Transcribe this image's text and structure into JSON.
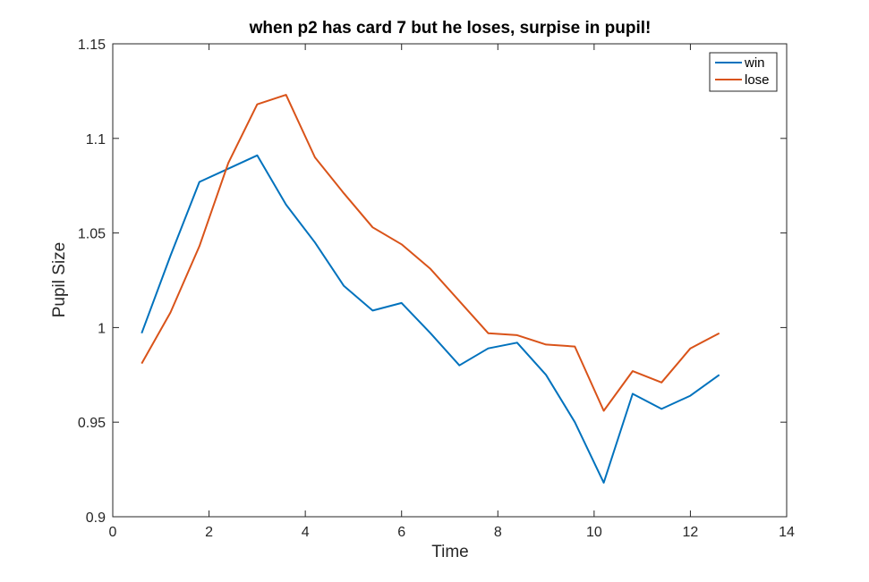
{
  "chart_data": {
    "type": "line",
    "title": "when p2 has card 7 but he loses, surpise in pupil!",
    "xlabel": "Time",
    "ylabel": "Pupil Size",
    "xlim": [
      0,
      14
    ],
    "ylim": [
      0.9,
      1.15
    ],
    "xticks": [
      0,
      2,
      4,
      6,
      8,
      10,
      12,
      14
    ],
    "xtick_labels": [
      "0",
      "2",
      "4",
      "6",
      "8",
      "10",
      "12",
      "14"
    ],
    "yticks": [
      0.9,
      0.95,
      1.0,
      1.05,
      1.1,
      1.15
    ],
    "ytick_labels": [
      "0.9",
      "0.95",
      "1",
      "1.05",
      "1.1",
      "1.15"
    ],
    "grid": false,
    "legend_position": "top-right",
    "x": [
      0.6,
      1.2,
      1.8,
      2.4,
      3.0,
      3.6,
      4.2,
      4.8,
      5.4,
      6.0,
      6.6,
      7.2,
      7.8,
      8.4,
      9.0,
      9.6,
      10.2,
      10.8,
      11.4,
      12.0,
      12.6
    ],
    "series": [
      {
        "name": "win",
        "color": "#0072BD",
        "values": [
          0.997,
          1.038,
          1.077,
          1.084,
          1.091,
          1.065,
          1.045,
          1.022,
          1.009,
          1.013,
          0.997,
          0.98,
          0.989,
          0.992,
          0.975,
          0.95,
          0.918,
          0.965,
          0.957,
          0.964,
          0.975
        ]
      },
      {
        "name": "lose",
        "color": "#D95319",
        "values": [
          0.981,
          1.008,
          1.043,
          1.087,
          1.118,
          1.123,
          1.09,
          1.071,
          1.053,
          1.044,
          1.031,
          1.014,
          0.997,
          0.996,
          0.991,
          0.99,
          0.956,
          0.977,
          0.971,
          0.989,
          0.997
        ]
      }
    ]
  }
}
